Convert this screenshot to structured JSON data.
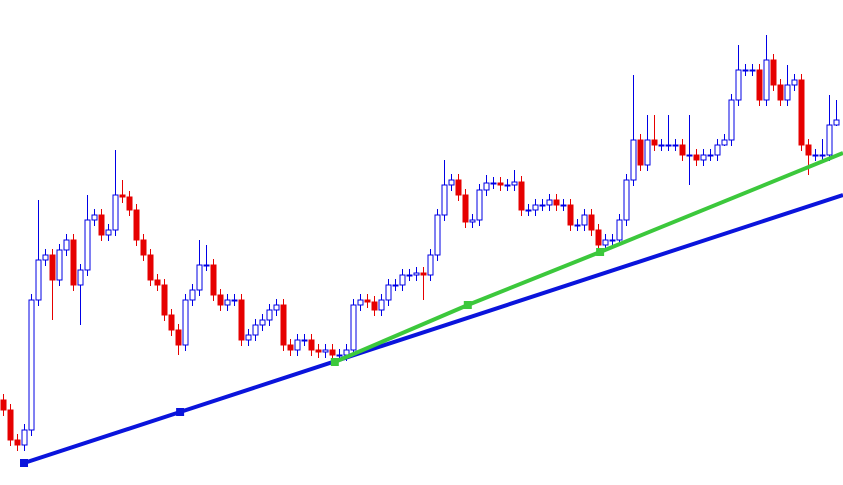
{
  "chart_data": {
    "type": "candlestick",
    "categories": [
      null,
      null,
      null,
      null,
      null,
      null,
      null,
      null,
      null,
      null,
      null,
      null,
      null,
      null,
      null,
      null,
      null,
      null,
      null,
      null,
      null,
      null,
      null,
      null,
      null,
      null,
      null,
      null,
      null,
      null,
      null,
      null,
      null,
      null,
      null,
      null,
      null,
      null,
      null,
      null,
      null,
      null,
      null,
      null,
      null,
      null,
      null,
      null,
      null,
      null,
      null,
      null,
      null,
      null,
      null,
      null,
      null,
      null,
      null,
      null,
      null,
      null,
      null,
      null,
      null,
      null,
      null,
      null,
      null,
      null,
      null,
      null,
      null,
      null,
      null,
      null,
      null,
      null,
      null,
      null,
      null,
      null,
      null,
      null,
      null,
      null,
      null,
      null,
      null,
      null,
      null,
      null,
      null,
      null,
      null,
      null,
      null,
      null,
      null,
      null,
      null,
      null,
      null,
      null,
      null,
      null,
      null,
      null,
      null,
      null,
      null,
      null,
      null,
      null,
      null,
      null,
      null,
      null,
      null,
      null
    ],
    "open": [
      85,
      75,
      45,
      40,
      55,
      185,
      225,
      230,
      205,
      235,
      245,
      200,
      215,
      265,
      270,
      250,
      255,
      290,
      288,
      275,
      245,
      230,
      205,
      200,
      170,
      155,
      140,
      185,
      195,
      220,
      220,
      190,
      180,
      185,
      185,
      145,
      150,
      160,
      165,
      175,
      180,
      140,
      135,
      145,
      145,
      135,
      133,
      135,
      130,
      130,
      135,
      180,
      185,
      183,
      175,
      185,
      200,
      200,
      210,
      210,
      212,
      210,
      230,
      270,
      300,
      305,
      290,
      263,
      265,
      295,
      302,
      302,
      300,
      300,
      303,
      275,
      275,
      280,
      280,
      285,
      280,
      280,
      260,
      260,
      270,
      255,
      240,
      245,
      245,
      265,
      305,
      345,
      320,
      345,
      340,
      340,
      340,
      340,
      330,
      330,
      325,
      330,
      330,
      340,
      345,
      385,
      415,
      415,
      415,
      385,
      425,
      400,
      385,
      400,
      405,
      340,
      330,
      330,
      330,
      360
    ],
    "high": [
      91,
      81,
      51,
      61,
      191,
      285,
      236,
      236,
      241,
      251,
      251,
      221,
      290,
      276,
      276,
      261,
      335,
      305,
      294,
      281,
      251,
      236,
      211,
      206,
      176,
      161,
      191,
      201,
      245,
      240,
      226,
      196,
      191,
      191,
      191,
      156,
      166,
      171,
      181,
      186,
      186,
      146,
      151,
      151,
      151,
      141,
      141,
      141,
      136,
      141,
      186,
      191,
      191,
      189,
      191,
      206,
      206,
      216,
      216,
      218,
      218,
      236,
      276,
      325,
      311,
      311,
      296,
      271,
      301,
      310,
      308,
      308,
      306,
      315,
      309,
      281,
      286,
      286,
      291,
      291,
      286,
      286,
      266,
      276,
      276,
      261,
      251,
      251,
      271,
      311,
      410,
      351,
      370,
      370,
      346,
      370,
      346,
      346,
      370,
      336,
      336,
      336,
      346,
      351,
      391,
      440,
      421,
      421,
      421,
      450,
      431,
      406,
      420,
      411,
      411,
      346,
      336,
      346,
      390,
      385
    ],
    "low": [
      69,
      39,
      34,
      34,
      49,
      179,
      219,
      165,
      199,
      229,
      194,
      160,
      209,
      259,
      244,
      244,
      249,
      282,
      269,
      239,
      224,
      199,
      194,
      164,
      149,
      130,
      134,
      179,
      189,
      214,
      184,
      174,
      174,
      179,
      139,
      139,
      144,
      154,
      159,
      169,
      134,
      129,
      129,
      139,
      129,
      127,
      127,
      124,
      124,
      124,
      129,
      174,
      177,
      169,
      169,
      179,
      194,
      194,
      204,
      204,
      185,
      204,
      224,
      264,
      294,
      284,
      257,
      257,
      259,
      289,
      296,
      294,
      294,
      294,
      269,
      269,
      269,
      274,
      274,
      274,
      274,
      254,
      254,
      254,
      249,
      234,
      234,
      239,
      239,
      259,
      299,
      314,
      314,
      334,
      334,
      334,
      334,
      324,
      300,
      319,
      319,
      324,
      324,
      339,
      339,
      379,
      409,
      409,
      379,
      379,
      394,
      379,
      379,
      394,
      334,
      310,
      324,
      324,
      324,
      359
    ],
    "close": [
      75,
      45,
      40,
      55,
      185,
      225,
      230,
      205,
      235,
      245,
      200,
      215,
      265,
      270,
      250,
      255,
      290,
      288,
      275,
      245,
      230,
      205,
      200,
      170,
      155,
      140,
      185,
      195,
      220,
      220,
      190,
      180,
      185,
      185,
      145,
      150,
      160,
      165,
      175,
      180,
      140,
      135,
      145,
      145,
      135,
      133,
      135,
      130,
      130,
      135,
      180,
      185,
      183,
      175,
      185,
      200,
      200,
      210,
      210,
      212,
      210,
      230,
      270,
      300,
      305,
      290,
      263,
      265,
      295,
      302,
      302,
      300,
      300,
      303,
      275,
      275,
      280,
      280,
      285,
      280,
      280,
      260,
      260,
      270,
      255,
      240,
      245,
      245,
      265,
      305,
      345,
      320,
      345,
      340,
      340,
      340,
      340,
      330,
      330,
      325,
      330,
      330,
      340,
      345,
      385,
      415,
      415,
      415,
      385,
      425,
      400,
      385,
      400,
      405,
      340,
      330,
      330,
      330,
      360,
      365
    ],
    "up_color": "#0000e6",
    "down_color": "#e60000",
    "xlim": [
      -0.43,
      120
    ],
    "ylim": [
      0,
      485
    ],
    "trendlines": [
      {
        "color": "#0a14dc",
        "x": [
          3,
          25.3,
          120
        ],
        "values": [
          22,
          73,
          290
        ]
      },
      {
        "color": "#3cc83c",
        "x": [
          47.4,
          66.4,
          85.3,
          120
        ],
        "values": [
          123,
          180,
          233,
          332
        ]
      }
    ]
  }
}
